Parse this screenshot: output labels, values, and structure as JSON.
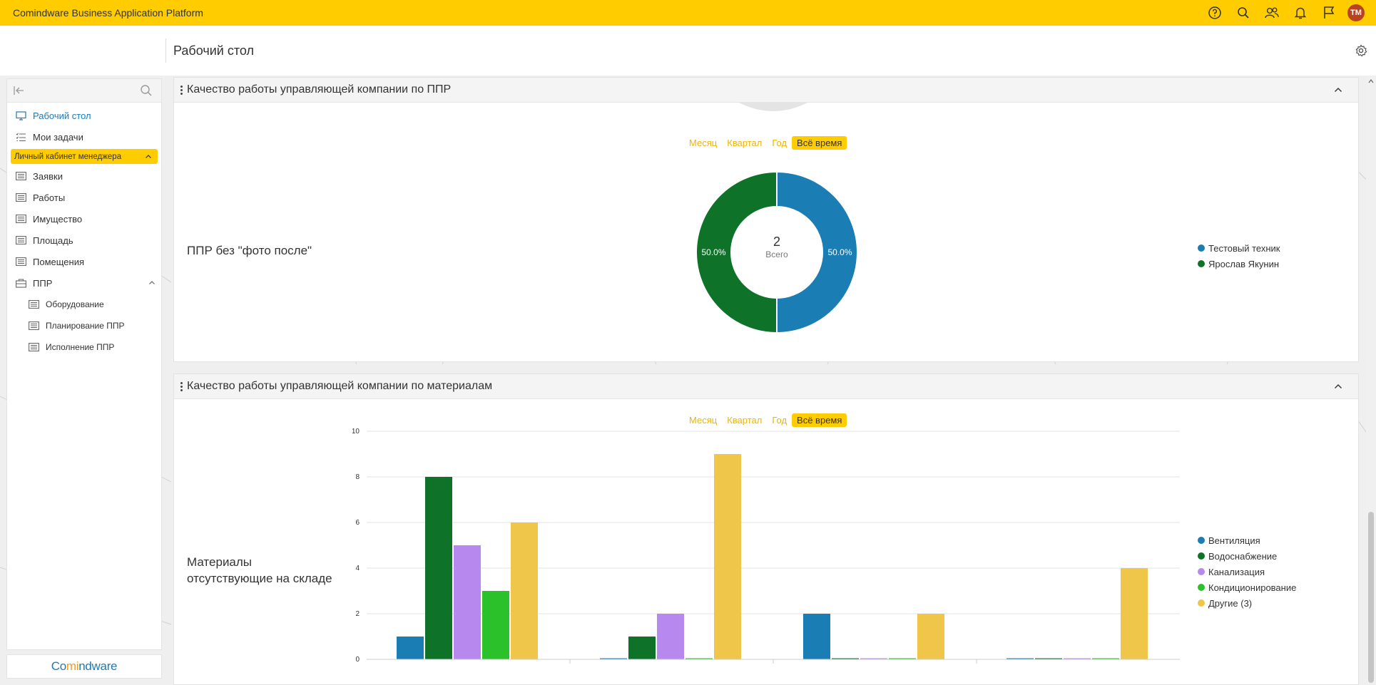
{
  "app": {
    "title": "Comindware Business Application Platform",
    "avatar_initials": "TM"
  },
  "header": {
    "page_title": "Рабочий стол"
  },
  "sidebar": {
    "items": [
      {
        "label": "Рабочий стол",
        "icon": "desktop-icon",
        "active": true
      },
      {
        "label": "Мои задачи",
        "icon": "tasks-icon"
      }
    ],
    "group_label": "Личный кабинет менеджера",
    "group_items": [
      {
        "label": "Заявки",
        "icon": "list-icon"
      },
      {
        "label": "Работы",
        "icon": "list-icon"
      },
      {
        "label": "Имущество",
        "icon": "list-icon"
      },
      {
        "label": "Площадь",
        "icon": "list-icon"
      },
      {
        "label": "Помещения",
        "icon": "list-icon"
      },
      {
        "label": "ППР",
        "icon": "folder-icon"
      }
    ],
    "sub_items": [
      {
        "label": "Оборудование",
        "icon": "list-icon"
      },
      {
        "label": "Планирование ППР",
        "icon": "list-icon"
      },
      {
        "label": "Исполнение ППР",
        "icon": "list-icon"
      }
    ],
    "logo": "Comindware"
  },
  "periods": [
    "Месяц",
    "Квартал",
    "Год",
    "Всё время"
  ],
  "widget1": {
    "title": "Качество работы управляющей компании по ППР",
    "active_period": "Всё время",
    "chart_label": "ППР без \"фото после\""
  },
  "widget2": {
    "title": "Качество работы управляющей компании по материалам",
    "active_period": "Всё время",
    "chart_label_line1": "Материалы",
    "chart_label_line2": "отсутствующие на складе"
  },
  "chart_data": [
    {
      "type": "pie",
      "categories": [
        "Тестовый техник",
        "Ярослав Якунин"
      ],
      "values": [
        1,
        1
      ],
      "slice_labels": [
        "50.0%",
        "50.0%"
      ],
      "colors": [
        "#1a7db3",
        "#0e7229"
      ],
      "center_value": "2",
      "center_label": "Всего",
      "legend_position": "right"
    },
    {
      "type": "bar",
      "categories": [
        "",
        "",
        "",
        ""
      ],
      "series": [
        {
          "name": "Вентиляция",
          "color": "#1a7db3",
          "values": [
            1,
            0,
            2,
            0
          ]
        },
        {
          "name": "Водоснабжение",
          "color": "#0e7229",
          "values": [
            8,
            1,
            0,
            0
          ]
        },
        {
          "name": "Канализация",
          "color": "#b788ee",
          "values": [
            5,
            2,
            0,
            0
          ]
        },
        {
          "name": "Кондиционирование",
          "color": "#2bc12b",
          "values": [
            3,
            0,
            0,
            0
          ]
        },
        {
          "name": "Другие (3)",
          "color": "#efc54a",
          "values": [
            6,
            9,
            2,
            4
          ]
        }
      ],
      "y_ticks": [
        "0",
        "2",
        "4",
        "6",
        "8",
        "10"
      ],
      "ylim": [
        0,
        10
      ],
      "grid": true,
      "legend_position": "right"
    }
  ]
}
